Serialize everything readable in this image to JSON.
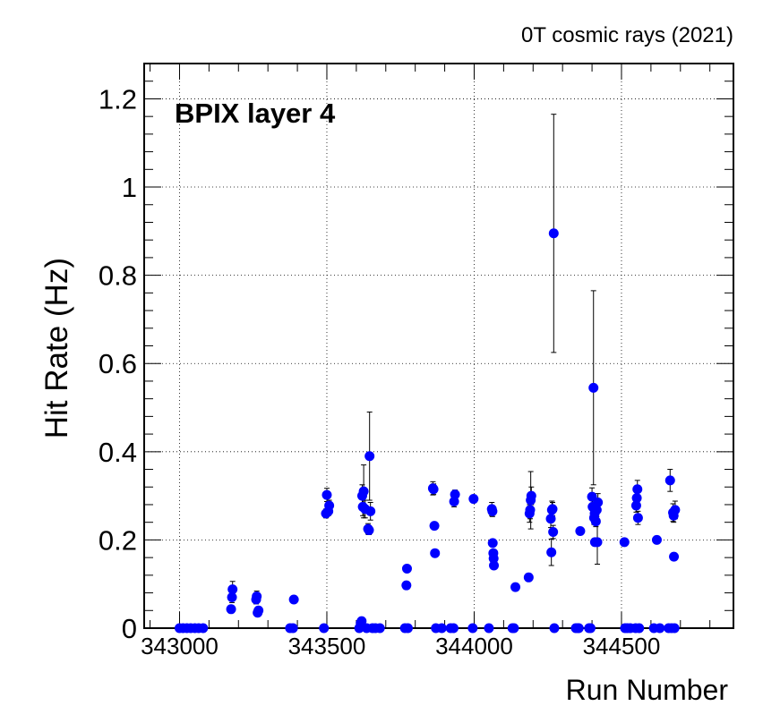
{
  "chart_data": {
    "type": "scatter",
    "title": "0T cosmic rays (2021)",
    "annotation": "BPIX layer 4",
    "xlabel": "Run Number",
    "ylabel": "Hit Rate (Hz)",
    "xlim": [
      342880,
      344880
    ],
    "ylim": [
      0,
      1.28
    ],
    "xticks": [
      343000,
      343500,
      344000,
      344500
    ],
    "xtick_labels": [
      "343000",
      "343500",
      "344000",
      "344500"
    ],
    "yticks": [
      0,
      0.2,
      0.4,
      0.6,
      0.8,
      1,
      1.2
    ],
    "ytick_labels": [
      "0",
      "0.2",
      "0.4",
      "0.6",
      "0.8",
      "1",
      "1.2"
    ],
    "grid": true,
    "marker_color": "#0000ff",
    "series": [
      {
        "points": [
          {
            "x": 343000,
            "y": 0
          },
          {
            "x": 343012,
            "y": 0
          },
          {
            "x": 343025,
            "y": 0
          },
          {
            "x": 343038,
            "y": 0
          },
          {
            "x": 343052,
            "y": 0
          },
          {
            "x": 343065,
            "y": 0
          },
          {
            "x": 343080,
            "y": 0
          },
          {
            "x": 343175,
            "y": 0.043,
            "err": 0.008
          },
          {
            "x": 343178,
            "y": 0.07,
            "err": 0.012
          },
          {
            "x": 343180,
            "y": 0.088,
            "err": 0.018
          },
          {
            "x": 343260,
            "y": 0.065,
            "err": 0.01
          },
          {
            "x": 343262,
            "y": 0.072,
            "err": 0.012
          },
          {
            "x": 343265,
            "y": 0.035,
            "err": 0.007
          },
          {
            "x": 343268,
            "y": 0.04,
            "err": 0.006
          },
          {
            "x": 343375,
            "y": 0
          },
          {
            "x": 343385,
            "y": 0
          },
          {
            "x": 343388,
            "y": 0.065
          },
          {
            "x": 343490,
            "y": 0
          },
          {
            "x": 343497,
            "y": 0.26,
            "err": 0.01
          },
          {
            "x": 343500,
            "y": 0.302,
            "err": 0.015
          },
          {
            "x": 343505,
            "y": 0.265,
            "err": 0.01
          },
          {
            "x": 343508,
            "y": 0.278,
            "err": 0.012
          },
          {
            "x": 343610,
            "y": 0
          },
          {
            "x": 343615,
            "y": 0.012
          },
          {
            "x": 343618,
            "y": 0.016
          },
          {
            "x": 343620,
            "y": 0.3,
            "err": 0.025
          },
          {
            "x": 343622,
            "y": 0.275,
            "err": 0.02
          },
          {
            "x": 343625,
            "y": 0.31,
            "err": 0.06
          },
          {
            "x": 343630,
            "y": 0.27,
            "err": 0.02
          },
          {
            "x": 343635,
            "y": 0
          },
          {
            "x": 343640,
            "y": 0.225,
            "err": 0.012
          },
          {
            "x": 343643,
            "y": 0.222,
            "err": 0.01
          },
          {
            "x": 343645,
            "y": 0.39,
            "err": 0.1
          },
          {
            "x": 343648,
            "y": 0.265,
            "err": 0.02
          },
          {
            "x": 343655,
            "y": 0
          },
          {
            "x": 343665,
            "y": 0
          },
          {
            "x": 343680,
            "y": 0
          },
          {
            "x": 343765,
            "y": 0
          },
          {
            "x": 343770,
            "y": 0.097
          },
          {
            "x": 343772,
            "y": 0.135
          },
          {
            "x": 343775,
            "y": 0
          },
          {
            "x": 343860,
            "y": 0.317,
            "err": 0.015
          },
          {
            "x": 343862,
            "y": 0.315,
            "err": 0.012
          },
          {
            "x": 343865,
            "y": 0.232
          },
          {
            "x": 343867,
            "y": 0.17
          },
          {
            "x": 343870,
            "y": 0
          },
          {
            "x": 343890,
            "y": 0
          },
          {
            "x": 343920,
            "y": 0
          },
          {
            "x": 343930,
            "y": 0
          },
          {
            "x": 343932,
            "y": 0.287,
            "err": 0.012
          },
          {
            "x": 343935,
            "y": 0.303,
            "err": 0.01
          },
          {
            "x": 343995,
            "y": 0
          },
          {
            "x": 343998,
            "y": 0.293,
            "err": 0.008
          },
          {
            "x": 344050,
            "y": 0
          },
          {
            "x": 344060,
            "y": 0.27,
            "err": 0.015
          },
          {
            "x": 344062,
            "y": 0.265,
            "err": 0.012
          },
          {
            "x": 344063,
            "y": 0.193
          },
          {
            "x": 344065,
            "y": 0.17
          },
          {
            "x": 344066,
            "y": 0.158
          },
          {
            "x": 344067,
            "y": 0.142
          },
          {
            "x": 344130,
            "y": 0
          },
          {
            "x": 344135,
            "y": 0
          },
          {
            "x": 344140,
            "y": 0.093
          },
          {
            "x": 344185,
            "y": 0.115
          },
          {
            "x": 344188,
            "y": 0.26,
            "err": 0.02
          },
          {
            "x": 344190,
            "y": 0.268,
            "err": 0.02
          },
          {
            "x": 344192,
            "y": 0.29,
            "err": 0.065
          },
          {
            "x": 344194,
            "y": 0.3,
            "err": 0.02
          },
          {
            "x": 344260,
            "y": 0.248,
            "err": 0.02
          },
          {
            "x": 344262,
            "y": 0.172,
            "err": 0.03
          },
          {
            "x": 344264,
            "y": 0.268,
            "err": 0.02
          },
          {
            "x": 344266,
            "y": 0.27,
            "err": 0.015
          },
          {
            "x": 344268,
            "y": 0.218,
            "err": 0.015
          },
          {
            "x": 344270,
            "y": 0.895,
            "err": 0.27
          },
          {
            "x": 344272,
            "y": 0
          },
          {
            "x": 344345,
            "y": 0
          },
          {
            "x": 344352,
            "y": 0
          },
          {
            "x": 344355,
            "y": 0
          },
          {
            "x": 344360,
            "y": 0.22
          },
          {
            "x": 344390,
            "y": 0
          },
          {
            "x": 344395,
            "y": 0
          },
          {
            "x": 344400,
            "y": 0.298,
            "err": 0.02
          },
          {
            "x": 344402,
            "y": 0.275,
            "err": 0.02
          },
          {
            "x": 344405,
            "y": 0.545,
            "err": 0.22
          },
          {
            "x": 344407,
            "y": 0.25,
            "err": 0.015
          },
          {
            "x": 344409,
            "y": 0.26,
            "err": 0.02
          },
          {
            "x": 344410,
            "y": 0.195
          },
          {
            "x": 344413,
            "y": 0.242,
            "err": 0.012
          },
          {
            "x": 344416,
            "y": 0.268,
            "err": 0.015
          },
          {
            "x": 344418,
            "y": 0.195,
            "err": 0.05
          },
          {
            "x": 344420,
            "y": 0.285,
            "err": 0.02
          },
          {
            "x": 344510,
            "y": 0.195
          },
          {
            "x": 344512,
            "y": 0
          },
          {
            "x": 344520,
            "y": 0
          },
          {
            "x": 344530,
            "y": 0
          },
          {
            "x": 344548,
            "y": 0
          },
          {
            "x": 344550,
            "y": 0.278,
            "err": 0.015
          },
          {
            "x": 344552,
            "y": 0.295,
            "err": 0.02
          },
          {
            "x": 344554,
            "y": 0.315,
            "err": 0.02
          },
          {
            "x": 344556,
            "y": 0.25,
            "err": 0.015
          },
          {
            "x": 344560,
            "y": 0
          },
          {
            "x": 344610,
            "y": 0
          },
          {
            "x": 344620,
            "y": 0.2
          },
          {
            "x": 344630,
            "y": 0
          },
          {
            "x": 344660,
            "y": 0
          },
          {
            "x": 344665,
            "y": 0.335,
            "err": 0.025
          },
          {
            "x": 344670,
            "y": 0
          },
          {
            "x": 344675,
            "y": 0.262,
            "err": 0.02
          },
          {
            "x": 344677,
            "y": 0.255,
            "err": 0.015
          },
          {
            "x": 344678,
            "y": 0.162
          },
          {
            "x": 344680,
            "y": 0
          },
          {
            "x": 344682,
            "y": 0.268,
            "err": 0.02
          }
        ]
      }
    ]
  }
}
